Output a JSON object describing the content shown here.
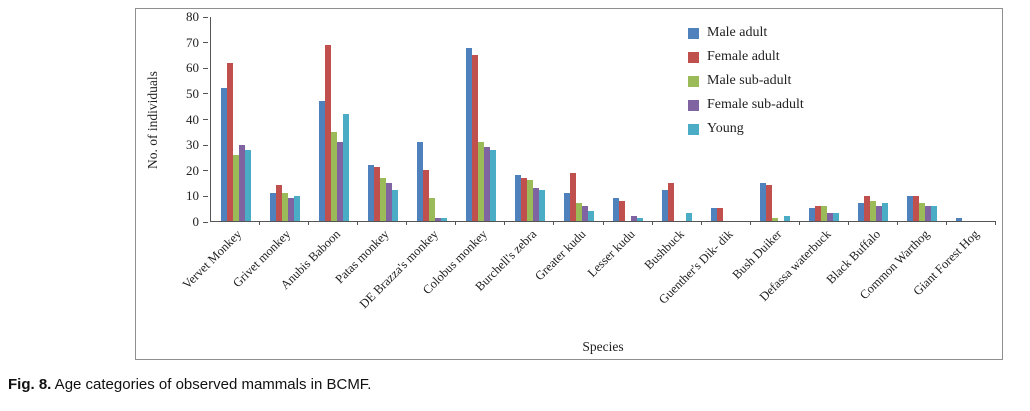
{
  "caption": {
    "label": "Fig. 8.",
    "text": " Age categories of observed mammals in BCMF."
  },
  "chart_data": {
    "type": "bar",
    "title": "",
    "xlabel": "Species",
    "ylabel": "No. of individuals",
    "ylim": [
      0,
      80
    ],
    "yticks": [
      0,
      10,
      20,
      30,
      40,
      50,
      60,
      70,
      80
    ],
    "grid": false,
    "legend_position": "top-right-inside",
    "categories": [
      "Vervet Monkey",
      "Grivet monkey",
      "Anubis Baboon",
      "Patas monkey",
      "DE Brazza's monkey",
      "Colobus monkey",
      "Burchell's zebra",
      "Greater kudu",
      "Lesser kudu",
      "Bushbuck",
      "Guenther's Dik- dik",
      "Bush Duiker",
      "Defassa waterbuck",
      "Black Buffalo",
      "Common Warthog",
      "Giant Forest Hog"
    ],
    "series": [
      {
        "name": "Male adult",
        "color": "#4F81BD",
        "values": [
          52,
          11,
          47,
          22,
          31,
          68,
          18,
          11,
          9,
          12,
          5,
          15,
          5,
          7,
          10,
          1
        ]
      },
      {
        "name": "Female adult",
        "color": "#C0504D",
        "values": [
          62,
          14,
          69,
          21,
          20,
          65,
          17,
          19,
          8,
          15,
          5,
          14,
          6,
          10,
          10,
          0
        ]
      },
      {
        "name": "Male sub-adult",
        "color": "#9BBB59",
        "values": [
          26,
          11,
          35,
          17,
          9,
          31,
          16,
          7,
          0,
          0,
          0,
          1,
          6,
          8,
          7,
          0
        ]
      },
      {
        "name": "Female sub-adult",
        "color": "#8064A2",
        "values": [
          30,
          9,
          31,
          15,
          1,
          29,
          13,
          6,
          2,
          0,
          0,
          0,
          3,
          6,
          6,
          0
        ]
      },
      {
        "name": "Young",
        "color": "#4BACC6",
        "values": [
          28,
          10,
          42,
          12,
          1,
          28,
          12,
          4,
          1,
          3,
          0,
          2,
          3,
          7,
          6,
          0
        ]
      }
    ]
  }
}
